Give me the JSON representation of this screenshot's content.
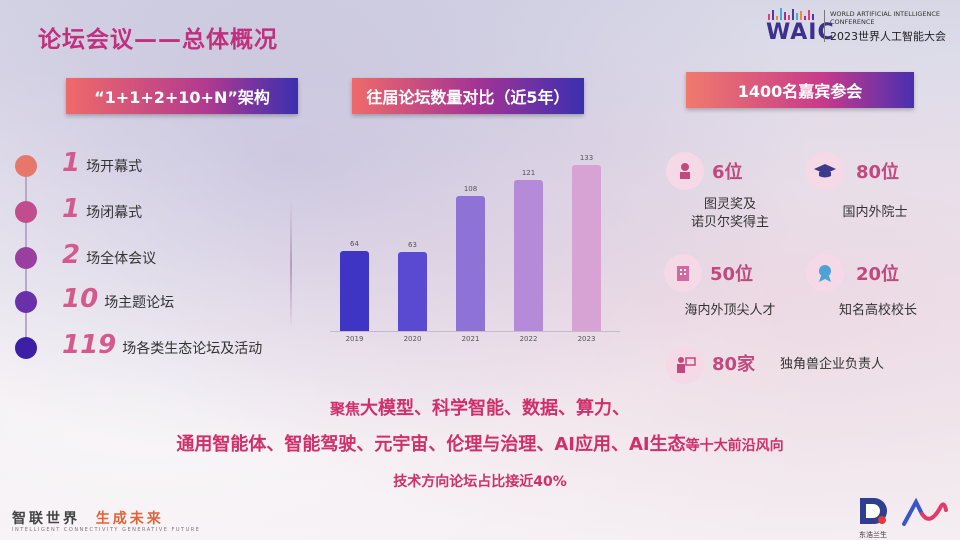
{
  "header": {
    "title": "论坛会议——总体概况",
    "logo": {
      "mark": "WAIC",
      "en": "WORLD ARTIFICIAL INTELLIGENCE CONFERENCE",
      "cn": "2023世界人工智能大会",
      "bar_colors": [
        "#e83e6c",
        "#4b3aa8",
        "#f08a3a",
        "#3bb0d8",
        "#9c2fa0",
        "#e83e6c",
        "#4b3aa8",
        "#3bb0d8",
        "#f08a3a",
        "#9c2fa0",
        "#e83e6c",
        "#4b3aa8"
      ]
    }
  },
  "structure": {
    "heading": "“1+1+2+10+N”架构",
    "items": [
      {
        "num": "1",
        "text": "场开幕式",
        "color": "#e6786b"
      },
      {
        "num": "1",
        "text": "场闭幕式",
        "color": "#c24d8c"
      },
      {
        "num": "2",
        "text": "场全体会议",
        "color": "#9a3ea0"
      },
      {
        "num": "10",
        "text": "场主题论坛",
        "color": "#6a30aa"
      },
      {
        "num": "119",
        "text": "场各类生态论坛及活动",
        "color": "#3d1fa6"
      }
    ]
  },
  "chart_heading": "往届论坛数量对比（近5年）",
  "chart_data": {
    "type": "bar",
    "categories": [
      "2019",
      "2020",
      "2021",
      "2022",
      "2023"
    ],
    "values": [
      64,
      63,
      108,
      121,
      133
    ],
    "data_labels": [
      "64",
      "63",
      "108",
      "121",
      "133"
    ],
    "ylim": [
      0,
      140
    ],
    "grid": false,
    "colors": [
      "#3f35c4",
      "#5a4ad2",
      "#8f72d6",
      "#b58ad8",
      "#d6a3d4"
    ]
  },
  "guests": {
    "heading": "1400名嘉宾参会",
    "items": [
      {
        "count": "6位",
        "desc": "图灵奖及\n诺贝尔奖得主",
        "icon": "award-icon"
      },
      {
        "count": "80位",
        "desc": "国内外院士",
        "icon": "graduation-cap-icon"
      },
      {
        "count": "50位",
        "desc": "海内外顶尖人才",
        "icon": "building-icon"
      },
      {
        "count": "20位",
        "desc": "知名高校校长",
        "icon": "medal-icon"
      },
      {
        "count": "80家",
        "desc": "独角兽企业负责人",
        "icon": "presenter-icon"
      }
    ]
  },
  "focus": {
    "line1_prefix": "聚焦",
    "line1_main": "大模型、科学智能、数据、算力、",
    "line2_main": "通用智能体、智能驾驶、元宇宙、伦理与治理、AI应用、AI生态",
    "line2_suffix": "等十大前沿风向",
    "line3": "技术方向论坛占比接近40%"
  },
  "footer": {
    "slogan_a": "智联世界",
    "slogan_b": "生成未来",
    "slogan_en": "INTELLIGENT CONNECTIVITY  GENERATIVE FUTURE",
    "partner1": "东浩兰生"
  }
}
